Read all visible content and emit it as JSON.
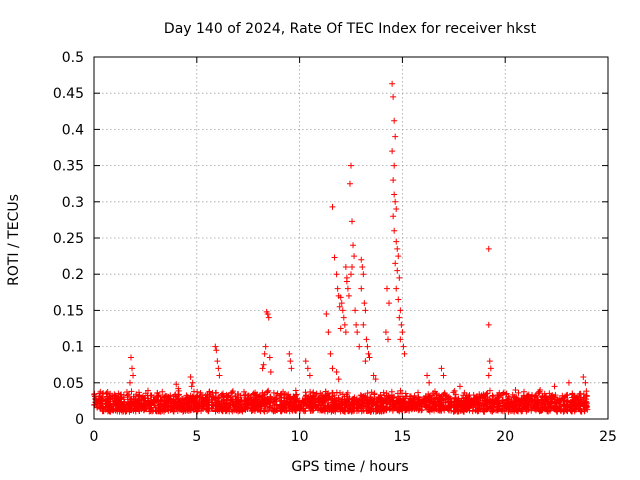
{
  "chart_data": {
    "type": "scatter",
    "title": "Day 140 of 2024, Rate Of TEC Index for receiver hkst",
    "xlabel": "GPS time / hours",
    "ylabel": "ROTI / TECUs",
    "xlim": [
      0,
      25
    ],
    "ylim": [
      0,
      0.5
    ],
    "xticks": [
      0,
      5,
      10,
      15,
      20,
      25
    ],
    "xtick_labels": [
      "0",
      "5",
      "10",
      "15",
      "20",
      "25"
    ],
    "yticks": [
      0,
      0.05,
      0.1,
      0.15,
      0.2,
      0.25,
      0.3,
      0.35,
      0.4,
      0.45,
      0.5
    ],
    "ytick_labels": [
      "0",
      "0.05",
      "0.1",
      "0.15",
      "0.2",
      "0.25",
      "0.3",
      "0.35",
      "0.4",
      "0.45",
      "0.5"
    ],
    "grid": true,
    "marker": "plus",
    "color": "#ff0000",
    "x_range_data": [
      0,
      24
    ],
    "baseline_band": [
      0.01,
      0.035
    ],
    "series": [
      {
        "points": [
          [
            1.8,
            0.085
          ],
          [
            1.85,
            0.07
          ],
          [
            1.9,
            0.06
          ],
          [
            1.75,
            0.05
          ],
          [
            4.0,
            0.048
          ],
          [
            4.1,
            0.042
          ],
          [
            4.7,
            0.058
          ],
          [
            4.8,
            0.05
          ],
          [
            4.75,
            0.045
          ],
          [
            5.9,
            0.1
          ],
          [
            5.95,
            0.095
          ],
          [
            6.0,
            0.08
          ],
          [
            6.05,
            0.07
          ],
          [
            6.1,
            0.06
          ],
          [
            8.4,
            0.148
          ],
          [
            8.45,
            0.145
          ],
          [
            8.5,
            0.14
          ],
          [
            8.35,
            0.1
          ],
          [
            8.3,
            0.09
          ],
          [
            8.55,
            0.085
          ],
          [
            8.25,
            0.075
          ],
          [
            8.2,
            0.07
          ],
          [
            8.6,
            0.065
          ],
          [
            9.5,
            0.09
          ],
          [
            9.55,
            0.08
          ],
          [
            9.6,
            0.07
          ],
          [
            10.3,
            0.08
          ],
          [
            10.4,
            0.07
          ],
          [
            10.5,
            0.06
          ],
          [
            11.3,
            0.145
          ],
          [
            11.4,
            0.12
          ],
          [
            11.5,
            0.09
          ],
          [
            11.6,
            0.07
          ],
          [
            11.8,
            0.065
          ],
          [
            11.9,
            0.055
          ],
          [
            11.6,
            0.293
          ],
          [
            11.7,
            0.223
          ],
          [
            11.8,
            0.2
          ],
          [
            11.85,
            0.18
          ],
          [
            11.9,
            0.17
          ],
          [
            12.0,
            0.168
          ],
          [
            12.05,
            0.16
          ],
          [
            11.95,
            0.155
          ],
          [
            12.1,
            0.15
          ],
          [
            12.15,
            0.14
          ],
          [
            12.2,
            0.13
          ],
          [
            12.25,
            0.12
          ],
          [
            12.0,
            0.125
          ],
          [
            12.25,
            0.21
          ],
          [
            12.3,
            0.195
          ],
          [
            12.35,
            0.18
          ],
          [
            12.4,
            0.17
          ],
          [
            12.3,
            0.19
          ],
          [
            12.5,
            0.35
          ],
          [
            12.45,
            0.325
          ],
          [
            12.55,
            0.273
          ],
          [
            12.6,
            0.24
          ],
          [
            12.65,
            0.225
          ],
          [
            12.55,
            0.21
          ],
          [
            12.5,
            0.2
          ],
          [
            12.7,
            0.15
          ],
          [
            12.75,
            0.13
          ],
          [
            12.8,
            0.12
          ],
          [
            12.9,
            0.1
          ],
          [
            13.0,
            0.22
          ],
          [
            13.05,
            0.21
          ],
          [
            13.1,
            0.2
          ],
          [
            13.0,
            0.18
          ],
          [
            13.15,
            0.16
          ],
          [
            13.2,
            0.15
          ],
          [
            13.1,
            0.13
          ],
          [
            13.25,
            0.11
          ],
          [
            13.3,
            0.1
          ],
          [
            13.35,
            0.09
          ],
          [
            13.4,
            0.085
          ],
          [
            13.2,
            0.08
          ],
          [
            13.6,
            0.06
          ],
          [
            13.7,
            0.055
          ],
          [
            14.2,
            0.12
          ],
          [
            14.3,
            0.11
          ],
          [
            14.25,
            0.18
          ],
          [
            14.35,
            0.16
          ],
          [
            14.5,
            0.463
          ],
          [
            14.55,
            0.445
          ],
          [
            14.6,
            0.412
          ],
          [
            14.65,
            0.39
          ],
          [
            14.5,
            0.37
          ],
          [
            14.6,
            0.35
          ],
          [
            14.55,
            0.33
          ],
          [
            14.6,
            0.31
          ],
          [
            14.65,
            0.3
          ],
          [
            14.7,
            0.29
          ],
          [
            14.55,
            0.28
          ],
          [
            14.6,
            0.26
          ],
          [
            14.7,
            0.245
          ],
          [
            14.75,
            0.235
          ],
          [
            14.8,
            0.225
          ],
          [
            14.65,
            0.215
          ],
          [
            14.75,
            0.205
          ],
          [
            14.85,
            0.195
          ],
          [
            14.7,
            0.18
          ],
          [
            14.8,
            0.165
          ],
          [
            14.9,
            0.15
          ],
          [
            14.85,
            0.14
          ],
          [
            14.95,
            0.13
          ],
          [
            15.0,
            0.12
          ],
          [
            14.9,
            0.11
          ],
          [
            15.05,
            0.1
          ],
          [
            15.1,
            0.09
          ],
          [
            16.2,
            0.06
          ],
          [
            16.3,
            0.05
          ],
          [
            16.9,
            0.07
          ],
          [
            17.0,
            0.06
          ],
          [
            17.8,
            0.045
          ],
          [
            19.2,
            0.235
          ],
          [
            19.2,
            0.13
          ],
          [
            19.25,
            0.08
          ],
          [
            19.3,
            0.07
          ],
          [
            19.2,
            0.06
          ],
          [
            20.5,
            0.04
          ],
          [
            21.7,
            0.04
          ],
          [
            22.4,
            0.045
          ],
          [
            23.1,
            0.05
          ],
          [
            23.8,
            0.058
          ],
          [
            23.9,
            0.05
          ]
        ]
      }
    ]
  }
}
